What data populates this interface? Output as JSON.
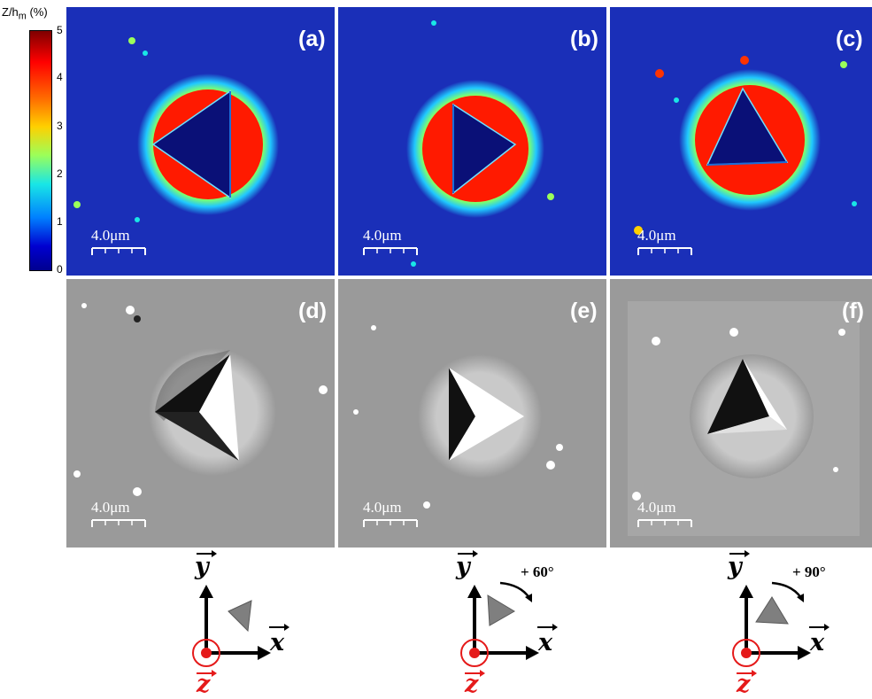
{
  "colorbar": {
    "title": "Z/h",
    "title_sub": "m",
    "title_unit": "(%)",
    "ticks": [
      "5",
      "4",
      "3",
      "2",
      "1",
      "0"
    ]
  },
  "panels": [
    {
      "id": "a",
      "label": "(a)",
      "kind": "height",
      "rotation": 0
    },
    {
      "id": "b",
      "label": "(b)",
      "kind": "height",
      "rotation": 60
    },
    {
      "id": "c",
      "label": "(c)",
      "kind": "height",
      "rotation": 90
    },
    {
      "id": "d",
      "label": "(d)",
      "kind": "relief",
      "rotation": 0
    },
    {
      "id": "e",
      "label": "(e)",
      "kind": "relief",
      "rotation": 60
    },
    {
      "id": "f",
      "label": "(f)",
      "kind": "relief",
      "rotation": 90
    }
  ],
  "scale_bar_label": "4.0μm",
  "axes": {
    "y_label": "y",
    "x_label": "x",
    "z_label": "z",
    "rotations": [
      "",
      "+ 60°",
      "+ 90°"
    ]
  },
  "colors": {
    "height_bg": "#1a2fb8",
    "red": "#ff1a00",
    "dark_blue": "#0a1077",
    "axis_red": "#e51a1a",
    "relief_bg": "#9a9a9a"
  }
}
